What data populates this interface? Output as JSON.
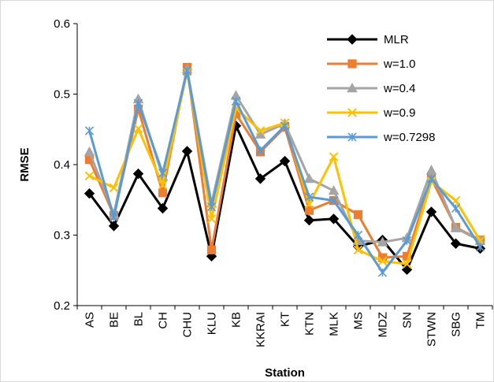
{
  "chart_data": {
    "type": "line",
    "title": "",
    "xlabel": "Station",
    "ylabel": "RMSE",
    "ylim": [
      0.2,
      0.6
    ],
    "yticks": [
      "0.2",
      "0.3",
      "0.4",
      "0.5",
      "0.6"
    ],
    "grid": false,
    "legend_position": "top-right",
    "categories": [
      "AS",
      "BE",
      "BL",
      "CH",
      "CHU",
      "KLU",
      "KB",
      "KKRAI",
      "KT",
      "KTN",
      "MLK",
      "MS",
      "MDZ",
      "SN",
      "STWN",
      "SBG",
      "TM"
    ],
    "series": [
      {
        "name": "MLR",
        "color": "#000000",
        "marker": "diamond",
        "values": [
          0.359,
          0.313,
          0.387,
          0.338,
          0.419,
          0.27,
          0.455,
          0.38,
          0.405,
          0.321,
          0.323,
          0.284,
          0.293,
          0.251,
          0.333,
          0.288,
          0.281
        ]
      },
      {
        "name": "w=1.0",
        "color": "#ED7D31",
        "marker": "square",
        "values": [
          0.407,
          0.328,
          0.479,
          0.36,
          0.538,
          0.279,
          0.472,
          0.418,
          0.453,
          0.335,
          0.349,
          0.329,
          0.268,
          0.27,
          0.38,
          0.311,
          0.293
        ]
      },
      {
        "name": "w=0.4",
        "color": "#A5A5A5",
        "marker": "triangle",
        "values": [
          0.418,
          0.33,
          0.493,
          0.383,
          0.535,
          0.345,
          0.498,
          0.443,
          0.458,
          0.38,
          0.363,
          0.292,
          0.29,
          0.296,
          0.392,
          0.31,
          0.292
        ]
      },
      {
        "name": "w=0.9",
        "color": "#FFC000",
        "marker": "x",
        "values": [
          0.384,
          0.367,
          0.451,
          0.371,
          0.532,
          0.323,
          0.48,
          0.448,
          0.459,
          0.344,
          0.411,
          0.279,
          0.263,
          0.259,
          0.376,
          0.349,
          0.292
        ]
      },
      {
        "name": "w=0.7298",
        "color": "#5B9BD5",
        "marker": "star",
        "values": [
          0.448,
          0.325,
          0.487,
          0.388,
          0.533,
          0.34,
          0.49,
          0.42,
          0.455,
          0.354,
          0.349,
          0.3,
          0.247,
          0.292,
          0.38,
          0.338,
          0.283
        ]
      }
    ]
  }
}
